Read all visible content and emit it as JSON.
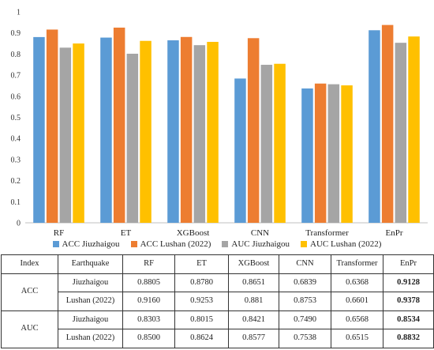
{
  "chart_data": {
    "type": "bar",
    "categories": [
      "RF",
      "ET",
      "XGBoost",
      "CNN",
      "Transformer",
      "EnPr"
    ],
    "series": [
      {
        "name": "ACC Jiuzhaigou",
        "color": "#5b9bd5",
        "values": [
          0.8805,
          0.878,
          0.8651,
          0.6839,
          0.6368,
          0.9128
        ]
      },
      {
        "name": "ACC Lushan (2022)",
        "color": "#ed7d31",
        "values": [
          0.916,
          0.9253,
          0.881,
          0.8753,
          0.6601,
          0.9378
        ]
      },
      {
        "name": "AUC Jiuzhaigou",
        "color": "#a5a5a5",
        "values": [
          0.8303,
          0.8015,
          0.8421,
          0.749,
          0.6568,
          0.8534
        ]
      },
      {
        "name": "AUC Lushan (2022)",
        "color": "#ffc000",
        "values": [
          0.85,
          0.8624,
          0.8577,
          0.7538,
          0.6515,
          0.8832
        ]
      }
    ],
    "ylim": [
      0,
      1
    ],
    "yticks": [
      "0",
      "0.1",
      "0.2",
      "0.3",
      "0.4",
      "0.5",
      "0.6",
      "0.7",
      "0.8",
      "0.9",
      "1"
    ],
    "xlabel": "",
    "ylabel": "",
    "grid": false,
    "legend_position": "bottom"
  },
  "table": {
    "headers": [
      "Index",
      "Earthquake",
      "RF",
      "ET",
      "XGBoost",
      "CNN",
      "Transformer",
      "EnPr"
    ],
    "groups": [
      {
        "index": "ACC",
        "rows": [
          {
            "earthquake": "Jiuzhaigou",
            "values": [
              "0.8805",
              "0.8780",
              "0.8651",
              "0.6839",
              "0.6368",
              "0.9128"
            ]
          },
          {
            "earthquake": "Lushan (2022)",
            "values": [
              "0.9160",
              "0.9253",
              "0.881",
              "0.8753",
              "0.6601",
              "0.9378"
            ]
          }
        ]
      },
      {
        "index": "AUC",
        "rows": [
          {
            "earthquake": "Jiuzhaigou",
            "values": [
              "0.8303",
              "0.8015",
              "0.8421",
              "0.7490",
              "0.6568",
              "0.8534"
            ]
          },
          {
            "earthquake": "Lushan (2022)",
            "values": [
              "0.8500",
              "0.8624",
              "0.8577",
              "0.7538",
              "0.6515",
              "0.8832"
            ]
          }
        ]
      }
    ]
  }
}
